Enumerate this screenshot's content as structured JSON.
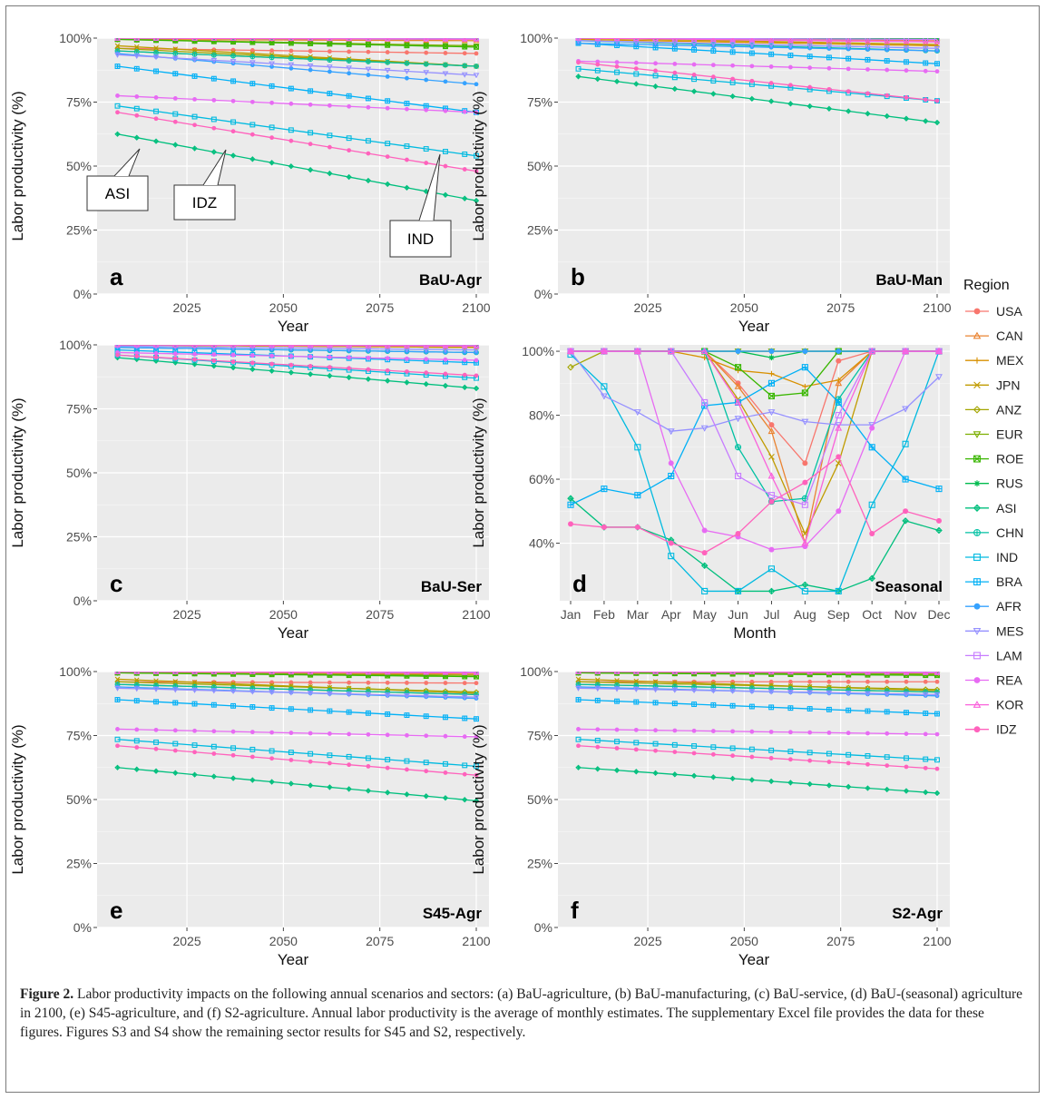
{
  "figure": {
    "caption_label": "Figure 2.",
    "caption_text": "Labor productivity impacts on the following annual scenarios and sectors: (a) BaU-agriculture, (b) BaU-manufacturing, (c) BaU-service, (d) BaU-(seasonal) agriculture in 2100, (e) S45-agriculture, and (f) S2-agriculture. Annual labor productivity is the average of monthly estimates. The supplementary Excel file provides the data for these figures. Figures S3 and S4 show the remaining sector results for S45 and S2, respectively."
  },
  "legend": {
    "title": "Region",
    "items": [
      {
        "name": "USA",
        "color": "#F8766D",
        "shape": "circle"
      },
      {
        "name": "CAN",
        "color": "#EA8331",
        "shape": "triangle"
      },
      {
        "name": "MEX",
        "color": "#D89000",
        "shape": "plus"
      },
      {
        "name": "JPN",
        "color": "#C09B00",
        "shape": "cross"
      },
      {
        "name": "ANZ",
        "color": "#A3A500",
        "shape": "diamond"
      },
      {
        "name": "EUR",
        "color": "#7CAE00",
        "shape": "triangle-down"
      },
      {
        "name": "ROE",
        "color": "#39B600",
        "shape": "square-cross"
      },
      {
        "name": "RUS",
        "color": "#00BB4E",
        "shape": "star"
      },
      {
        "name": "ASI",
        "color": "#00BF7D",
        "shape": "diamond-plus"
      },
      {
        "name": "CHN",
        "color": "#00C1A3",
        "shape": "circle-plus"
      },
      {
        "name": "IND",
        "color": "#00BAE0",
        "shape": "square"
      },
      {
        "name": "BRA",
        "color": "#00B0F6",
        "shape": "square-plus"
      },
      {
        "name": "AFR",
        "color": "#35A2FF",
        "shape": "circle"
      },
      {
        "name": "MES",
        "color": "#9590FF",
        "shape": "triangle-down"
      },
      {
        "name": "LAM",
        "color": "#C77CFF",
        "shape": "square"
      },
      {
        "name": "REA",
        "color": "#E76BF3",
        "shape": "circle"
      },
      {
        "name": "KOR",
        "color": "#FA62DB",
        "shape": "triangle"
      },
      {
        "name": "IDZ",
        "color": "#FF62BC",
        "shape": "circle"
      }
    ]
  },
  "chart_data": [
    {
      "panel": "a",
      "title": "BaU-Agr",
      "type": "line",
      "xlabel": "Year",
      "ylabel": "Labor productivity (%)",
      "xlim": [
        2005,
        2100
      ],
      "ylim": [
        0,
        100
      ],
      "xticks": [
        2025,
        2050,
        2075,
        2100
      ],
      "yticks": [
        0,
        25,
        50,
        75,
        100
      ],
      "ytick_labels": [
        "0%",
        "25%",
        "50%",
        "75%",
        "100%"
      ],
      "annotations": [
        "ASI",
        "IDZ",
        "IND"
      ],
      "series": [
        {
          "name": "USA",
          "start": 96,
          "end": 94
        },
        {
          "name": "CAN",
          "start": 99.5,
          "end": 99
        },
        {
          "name": "MEX",
          "start": 95,
          "end": 89
        },
        {
          "name": "JPN",
          "start": 97,
          "end": 89
        },
        {
          "name": "ANZ",
          "start": 96,
          "end": 89
        },
        {
          "name": "EUR",
          "start": 99.5,
          "end": 97
        },
        {
          "name": "ROE",
          "start": 99.5,
          "end": 96.5
        },
        {
          "name": "RUS",
          "start": 100,
          "end": 99.5
        },
        {
          "name": "ASI",
          "start": 62.5,
          "end": 36.5
        },
        {
          "name": "CHN",
          "start": 95,
          "end": 89
        },
        {
          "name": "IND",
          "start": 73.5,
          "end": 54
        },
        {
          "name": "BRA",
          "start": 89,
          "end": 71
        },
        {
          "name": "AFR",
          "start": 94,
          "end": 82
        },
        {
          "name": "MES",
          "start": 93.5,
          "end": 85.5
        },
        {
          "name": "LAM",
          "start": 100,
          "end": 100
        },
        {
          "name": "REA",
          "start": 77.5,
          "end": 71
        },
        {
          "name": "KOR",
          "start": 100,
          "end": 99.5
        },
        {
          "name": "IDZ",
          "start": 71,
          "end": 48
        }
      ]
    },
    {
      "panel": "b",
      "title": "BaU-Man",
      "type": "line",
      "xlabel": "Year",
      "ylabel": "Labor productivity (%)",
      "xlim": [
        2005,
        2100
      ],
      "ylim": [
        0,
        100
      ],
      "xticks": [
        2025,
        2050,
        2075,
        2100
      ],
      "yticks": [
        0,
        25,
        50,
        75,
        100
      ],
      "ytick_labels": [
        "0%",
        "25%",
        "50%",
        "75%",
        "100%"
      ],
      "series": [
        {
          "name": "USA",
          "start": 100,
          "end": 99
        },
        {
          "name": "CAN",
          "start": 100,
          "end": 100
        },
        {
          "name": "MEX",
          "start": 99.5,
          "end": 97
        },
        {
          "name": "JPN",
          "start": 100,
          "end": 97.5
        },
        {
          "name": "ANZ",
          "start": 100,
          "end": 99.5
        },
        {
          "name": "EUR",
          "start": 100,
          "end": 100
        },
        {
          "name": "ROE",
          "start": 100,
          "end": 99.5
        },
        {
          "name": "RUS",
          "start": 100,
          "end": 100
        },
        {
          "name": "ASI",
          "start": 85,
          "end": 67
        },
        {
          "name": "CHN",
          "start": 99,
          "end": 95
        },
        {
          "name": "IND",
          "start": 88,
          "end": 75.5
        },
        {
          "name": "BRA",
          "start": 98,
          "end": 90
        },
        {
          "name": "AFR",
          "start": 98,
          "end": 95
        },
        {
          "name": "MES",
          "start": 99,
          "end": 96
        },
        {
          "name": "LAM",
          "start": 100,
          "end": 99.5
        },
        {
          "name": "REA",
          "start": 91,
          "end": 87
        },
        {
          "name": "KOR",
          "start": 100,
          "end": 98.5
        },
        {
          "name": "IDZ",
          "start": 90.5,
          "end": 75.5
        }
      ]
    },
    {
      "panel": "c",
      "title": "BaU-Ser",
      "type": "line",
      "xlabel": "Year",
      "ylabel": "Labor productivity (%)",
      "xlim": [
        2005,
        2100
      ],
      "ylim": [
        0,
        100
      ],
      "xticks": [
        2025,
        2050,
        2075,
        2100
      ],
      "yticks": [
        0,
        25,
        50,
        75,
        100
      ],
      "ytick_labels": [
        "0%",
        "25%",
        "50%",
        "75%",
        "100%"
      ],
      "series": [
        {
          "name": "USA",
          "start": 100,
          "end": 99
        },
        {
          "name": "CAN",
          "start": 100,
          "end": 100
        },
        {
          "name": "MEX",
          "start": 100,
          "end": 99
        },
        {
          "name": "JPN",
          "start": 100,
          "end": 99
        },
        {
          "name": "ANZ",
          "start": 100,
          "end": 100
        },
        {
          "name": "EUR",
          "start": 100,
          "end": 100
        },
        {
          "name": "ROE",
          "start": 100,
          "end": 100
        },
        {
          "name": "RUS",
          "start": 100,
          "end": 100
        },
        {
          "name": "ASI",
          "start": 95,
          "end": 83
        },
        {
          "name": "CHN",
          "start": 99,
          "end": 97
        },
        {
          "name": "IND",
          "start": 96,
          "end": 87
        },
        {
          "name": "BRA",
          "start": 98,
          "end": 93
        },
        {
          "name": "AFR",
          "start": 99,
          "end": 97
        },
        {
          "name": "MES",
          "start": 99.5,
          "end": 98
        },
        {
          "name": "LAM",
          "start": 100,
          "end": 100
        },
        {
          "name": "REA",
          "start": 97,
          "end": 94
        },
        {
          "name": "KOR",
          "start": 100,
          "end": 99.5
        },
        {
          "name": "IDZ",
          "start": 96,
          "end": 88
        }
      ]
    },
    {
      "panel": "d",
      "title": "Seasonal",
      "type": "line",
      "xlabel": "Month",
      "ylabel": "Labor productivity (%)",
      "categories": [
        "Jan",
        "Feb",
        "Mar",
        "Apr",
        "May",
        "Jun",
        "Jul",
        "Aug",
        "Sep",
        "Oct",
        "Nov",
        "Dec"
      ],
      "ylim": [
        22,
        102
      ],
      "yticks": [
        40,
        60,
        80,
        100
      ],
      "ytick_labels": [
        "40%",
        "60%",
        "80%",
        "100%"
      ],
      "series": [
        {
          "name": "USA",
          "values": [
            100,
            100,
            100,
            100,
            100,
            90,
            77,
            65,
            97,
            100,
            100,
            100
          ]
        },
        {
          "name": "CAN",
          "values": [
            100,
            100,
            100,
            100,
            100,
            89,
            75,
            40,
            90,
            100,
            100,
            100
          ]
        },
        {
          "name": "MEX",
          "values": [
            100,
            100,
            100,
            100,
            98,
            94,
            93,
            89,
            91,
            100,
            100,
            100
          ]
        },
        {
          "name": "JPN",
          "values": [
            100,
            100,
            100,
            100,
            100,
            85,
            67,
            43,
            65,
            100,
            100,
            100
          ]
        },
        {
          "name": "ANZ",
          "values": [
            95,
            100,
            100,
            100,
            100,
            100,
            100,
            100,
            100,
            100,
            100,
            100
          ]
        },
        {
          "name": "EUR",
          "values": [
            100,
            100,
            100,
            100,
            100,
            100,
            100,
            100,
            100,
            100,
            100,
            100
          ]
        },
        {
          "name": "ROE",
          "values": [
            100,
            100,
            100,
            100,
            100,
            95,
            86,
            87,
            100,
            100,
            100,
            100
          ]
        },
        {
          "name": "RUS",
          "values": [
            100,
            100,
            100,
            100,
            100,
            100,
            98,
            100,
            100,
            100,
            100,
            100
          ]
        },
        {
          "name": "ASI",
          "values": [
            54,
            45,
            45,
            41,
            33,
            25,
            25,
            27,
            25,
            29,
            47,
            44
          ]
        },
        {
          "name": "CHN",
          "values": [
            100,
            100,
            100,
            100,
            100,
            70,
            53,
            54,
            85,
            100,
            100,
            100
          ]
        },
        {
          "name": "IND",
          "values": [
            99,
            89,
            70,
            36,
            25,
            25,
            32,
            25,
            25,
            52,
            71,
            100
          ]
        },
        {
          "name": "BRA",
          "values": [
            52,
            57,
            55,
            61,
            83,
            84,
            90,
            95,
            84,
            70,
            60,
            57
          ]
        },
        {
          "name": "AFR",
          "values": [
            100,
            100,
            100,
            100,
            100,
            100,
            100,
            100,
            100,
            100,
            100,
            100
          ]
        },
        {
          "name": "MES",
          "values": [
            100,
            86,
            81,
            75,
            76,
            79,
            81,
            78,
            77,
            77,
            82,
            92
          ]
        },
        {
          "name": "LAM",
          "values": [
            100,
            100,
            100,
            100,
            84,
            61,
            55,
            52,
            80,
            100,
            100,
            100
          ]
        },
        {
          "name": "REA",
          "values": [
            100,
            100,
            100,
            65,
            44,
            42,
            38,
            39,
            50,
            76,
            100,
            100
          ]
        },
        {
          "name": "KOR",
          "values": [
            100,
            100,
            100,
            100,
            100,
            84,
            61,
            40,
            76,
            100,
            100,
            100
          ]
        },
        {
          "name": "IDZ",
          "values": [
            46,
            45,
            45,
            40,
            37,
            43,
            53,
            59,
            67,
            43,
            50,
            47
          ]
        }
      ]
    },
    {
      "panel": "e",
      "title": "S45-Agr",
      "type": "line",
      "xlabel": "Year",
      "ylabel": "Labor productivity (%)",
      "xlim": [
        2005,
        2100
      ],
      "ylim": [
        0,
        100
      ],
      "xticks": [
        2025,
        2050,
        2075,
        2100
      ],
      "yticks": [
        0,
        25,
        50,
        75,
        100
      ],
      "ytick_labels": [
        "0%",
        "25%",
        "50%",
        "75%",
        "100%"
      ],
      "series": [
        {
          "name": "USA",
          "start": 96,
          "end": 95.5
        },
        {
          "name": "CAN",
          "start": 99.5,
          "end": 99
        },
        {
          "name": "MEX",
          "start": 95,
          "end": 91
        },
        {
          "name": "JPN",
          "start": 97,
          "end": 91.5
        },
        {
          "name": "ANZ",
          "start": 96,
          "end": 92
        },
        {
          "name": "EUR",
          "start": 99.5,
          "end": 98.5
        },
        {
          "name": "ROE",
          "start": 99.5,
          "end": 98
        },
        {
          "name": "RUS",
          "start": 100,
          "end": 99.5
        },
        {
          "name": "ASI",
          "start": 62.5,
          "end": 49.5
        },
        {
          "name": "CHN",
          "start": 95,
          "end": 91
        },
        {
          "name": "IND",
          "start": 73.5,
          "end": 63
        },
        {
          "name": "BRA",
          "start": 89,
          "end": 81.5
        },
        {
          "name": "AFR",
          "start": 94,
          "end": 89.5
        },
        {
          "name": "MES",
          "start": 93.5,
          "end": 90
        },
        {
          "name": "LAM",
          "start": 100,
          "end": 100
        },
        {
          "name": "REA",
          "start": 77.5,
          "end": 74.5
        },
        {
          "name": "KOR",
          "start": 100,
          "end": 99.5
        },
        {
          "name": "IDZ",
          "start": 71,
          "end": 59.5
        }
      ]
    },
    {
      "panel": "f",
      "title": "S2-Agr",
      "type": "line",
      "xlabel": "Year",
      "ylabel": "Labor productivity (%)",
      "xlim": [
        2005,
        2100
      ],
      "ylim": [
        0,
        100
      ],
      "xticks": [
        2025,
        2050,
        2075,
        2100
      ],
      "yticks": [
        0,
        25,
        50,
        75,
        100
      ],
      "ytick_labels": [
        "0%",
        "25%",
        "50%",
        "75%",
        "100%"
      ],
      "series": [
        {
          "name": "USA",
          "start": 96,
          "end": 96
        },
        {
          "name": "CAN",
          "start": 99.5,
          "end": 99
        },
        {
          "name": "MEX",
          "start": 95,
          "end": 92
        },
        {
          "name": "JPN",
          "start": 97,
          "end": 92.5
        },
        {
          "name": "ANZ",
          "start": 96,
          "end": 93
        },
        {
          "name": "EUR",
          "start": 99.5,
          "end": 99
        },
        {
          "name": "ROE",
          "start": 99.5,
          "end": 98.5
        },
        {
          "name": "RUS",
          "start": 100,
          "end": 99.5
        },
        {
          "name": "ASI",
          "start": 62.5,
          "end": 52.5
        },
        {
          "name": "CHN",
          "start": 95,
          "end": 92
        },
        {
          "name": "IND",
          "start": 73.5,
          "end": 65.5
        },
        {
          "name": "BRA",
          "start": 89,
          "end": 83.5
        },
        {
          "name": "AFR",
          "start": 94,
          "end": 90.5
        },
        {
          "name": "MES",
          "start": 93.5,
          "end": 91
        },
        {
          "name": "LAM",
          "start": 100,
          "end": 100
        },
        {
          "name": "REA",
          "start": 77.5,
          "end": 75.5
        },
        {
          "name": "KOR",
          "start": 100,
          "end": 99.5
        },
        {
          "name": "IDZ",
          "start": 71,
          "end": 62
        }
      ]
    }
  ]
}
